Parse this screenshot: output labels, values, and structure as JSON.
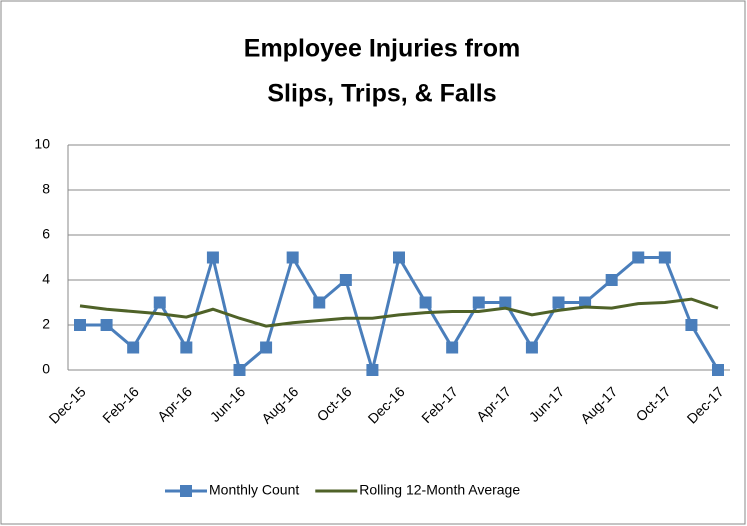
{
  "chart_data": {
    "type": "line",
    "title": [
      "Employee Injuries from",
      "Slips, Trips, & Falls"
    ],
    "categories": [
      "Dec-15",
      null,
      "Feb-16",
      null,
      "Apr-16",
      null,
      "Jun-16",
      null,
      "Aug-16",
      null,
      "Oct-16",
      null,
      "Dec-16",
      null,
      "Feb-17",
      null,
      "Apr-17",
      null,
      "Jun-17",
      null,
      "Aug-17",
      null,
      "Oct-17",
      null,
      "Dec-17"
    ],
    "series": [
      {
        "name": "Monthly Count",
        "color": "#4a7ebb",
        "marker": "square",
        "values": [
          2,
          2,
          1,
          3,
          1,
          5,
          0,
          1,
          5,
          3,
          4,
          0,
          5,
          3,
          1,
          3,
          3,
          1,
          3,
          3,
          4,
          5,
          5,
          2,
          0
        ]
      },
      {
        "name": "Rolling 12-Month Average",
        "color": "#4f6228",
        "marker": "none",
        "values": [
          2.85,
          2.7,
          2.6,
          2.5,
          2.35,
          2.7,
          2.3,
          1.95,
          2.1,
          2.2,
          2.3,
          2.3,
          2.45,
          2.55,
          2.6,
          2.6,
          2.75,
          2.45,
          2.65,
          2.8,
          2.75,
          2.95,
          3.0,
          3.15,
          2.75
        ]
      }
    ],
    "ylim": [
      0,
      10
    ],
    "yticks": [
      0,
      2,
      4,
      6,
      8,
      10
    ],
    "grid": true,
    "legend": "bottom"
  }
}
